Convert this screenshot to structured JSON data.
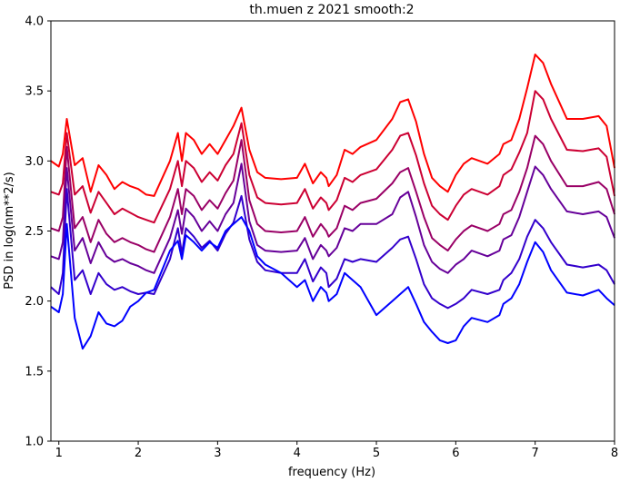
{
  "chart_data": {
    "type": "line",
    "title": "th.muen z 2021 smooth:2",
    "xlabel": "frequency (Hz)",
    "ylabel": "PSD in log(nm**2/s)",
    "xlim": [
      0.9,
      8.0
    ],
    "ylim": [
      1.0,
      4.0
    ],
    "xticks": [
      "1",
      "2",
      "3",
      "4",
      "5",
      "6",
      "7",
      "8"
    ],
    "yticks": [
      "1.0",
      "1.5",
      "2.0",
      "2.5",
      "3.0",
      "3.5",
      "4.0"
    ],
    "grid": false,
    "legend": "none",
    "x": [
      0.9,
      1.0,
      1.05,
      1.1,
      1.2,
      1.3,
      1.4,
      1.5,
      1.6,
      1.7,
      1.8,
      1.9,
      2.0,
      2.1,
      2.2,
      2.4,
      2.5,
      2.55,
      2.6,
      2.7,
      2.8,
      2.9,
      3.0,
      3.1,
      3.2,
      3.3,
      3.4,
      3.5,
      3.6,
      3.8,
      4.0,
      4.1,
      4.2,
      4.3,
      4.37,
      4.4,
      4.5,
      4.6,
      4.7,
      4.8,
      5.0,
      5.2,
      5.3,
      5.4,
      5.5,
      5.6,
      5.7,
      5.8,
      5.9,
      6.0,
      6.1,
      6.2,
      6.4,
      6.55,
      6.6,
      6.7,
      6.8,
      6.9,
      7.0,
      7.1,
      7.2,
      7.4,
      7.6,
      7.8,
      7.9,
      8.0
    ],
    "series": [
      {
        "color": "#ff0000",
        "values": [
          3.0,
          2.96,
          3.05,
          3.3,
          2.97,
          3.02,
          2.78,
          2.97,
          2.9,
          2.8,
          2.85,
          2.82,
          2.8,
          2.76,
          2.75,
          3.0,
          3.2,
          3.0,
          3.2,
          3.15,
          3.05,
          3.12,
          3.05,
          3.15,
          3.25,
          3.38,
          3.08,
          2.92,
          2.88,
          2.87,
          2.88,
          2.98,
          2.84,
          2.92,
          2.88,
          2.82,
          2.9,
          3.08,
          3.05,
          3.1,
          3.15,
          3.3,
          3.42,
          3.44,
          3.28,
          3.05,
          2.88,
          2.82,
          2.78,
          2.9,
          2.98,
          3.02,
          2.98,
          3.05,
          3.12,
          3.15,
          3.3,
          3.52,
          3.76,
          3.7,
          3.55,
          3.3,
          3.3,
          3.32,
          3.25,
          2.95
        ]
      },
      {
        "color": "#cc0033",
        "values": [
          2.78,
          2.76,
          2.84,
          3.2,
          2.76,
          2.82,
          2.63,
          2.78,
          2.7,
          2.62,
          2.66,
          2.63,
          2.6,
          2.58,
          2.56,
          2.8,
          3.0,
          2.82,
          3.0,
          2.95,
          2.85,
          2.92,
          2.86,
          2.97,
          3.05,
          3.27,
          2.9,
          2.74,
          2.7,
          2.69,
          2.7,
          2.8,
          2.66,
          2.74,
          2.7,
          2.65,
          2.72,
          2.88,
          2.85,
          2.9,
          2.94,
          3.08,
          3.18,
          3.2,
          3.04,
          2.84,
          2.68,
          2.62,
          2.58,
          2.68,
          2.76,
          2.8,
          2.76,
          2.82,
          2.9,
          2.94,
          3.06,
          3.2,
          3.5,
          3.44,
          3.3,
          3.08,
          3.07,
          3.09,
          3.03,
          2.75
        ]
      },
      {
        "color": "#990066",
        "values": [
          2.52,
          2.5,
          2.6,
          3.1,
          2.52,
          2.6,
          2.42,
          2.58,
          2.48,
          2.42,
          2.45,
          2.42,
          2.4,
          2.37,
          2.35,
          2.6,
          2.8,
          2.62,
          2.8,
          2.75,
          2.65,
          2.72,
          2.66,
          2.77,
          2.86,
          3.15,
          2.72,
          2.55,
          2.5,
          2.49,
          2.5,
          2.6,
          2.46,
          2.55,
          2.5,
          2.46,
          2.52,
          2.68,
          2.65,
          2.7,
          2.73,
          2.84,
          2.92,
          2.95,
          2.78,
          2.6,
          2.45,
          2.4,
          2.36,
          2.44,
          2.5,
          2.54,
          2.5,
          2.55,
          2.62,
          2.65,
          2.78,
          2.95,
          3.18,
          3.12,
          3.0,
          2.82,
          2.82,
          2.85,
          2.8,
          2.62
        ]
      },
      {
        "color": "#660099",
        "values": [
          2.32,
          2.3,
          2.42,
          2.95,
          2.36,
          2.45,
          2.27,
          2.42,
          2.32,
          2.28,
          2.3,
          2.27,
          2.25,
          2.22,
          2.2,
          2.45,
          2.65,
          2.48,
          2.66,
          2.6,
          2.5,
          2.57,
          2.5,
          2.62,
          2.7,
          2.98,
          2.57,
          2.4,
          2.36,
          2.35,
          2.36,
          2.45,
          2.3,
          2.4,
          2.36,
          2.32,
          2.38,
          2.52,
          2.5,
          2.55,
          2.55,
          2.62,
          2.74,
          2.78,
          2.6,
          2.4,
          2.28,
          2.23,
          2.2,
          2.26,
          2.3,
          2.36,
          2.32,
          2.36,
          2.44,
          2.47,
          2.6,
          2.78,
          2.96,
          2.9,
          2.8,
          2.64,
          2.62,
          2.64,
          2.6,
          2.45
        ]
      },
      {
        "color": "#3300cc",
        "values": [
          2.1,
          2.05,
          2.2,
          2.8,
          2.15,
          2.22,
          2.05,
          2.2,
          2.12,
          2.08,
          2.1,
          2.07,
          2.05,
          2.06,
          2.05,
          2.3,
          2.52,
          2.34,
          2.52,
          2.46,
          2.38,
          2.43,
          2.36,
          2.48,
          2.56,
          2.75,
          2.44,
          2.28,
          2.22,
          2.2,
          2.2,
          2.3,
          2.14,
          2.24,
          2.2,
          2.1,
          2.16,
          2.3,
          2.28,
          2.3,
          2.28,
          2.38,
          2.44,
          2.46,
          2.3,
          2.12,
          2.02,
          1.98,
          1.95,
          1.98,
          2.02,
          2.08,
          2.05,
          2.08,
          2.15,
          2.2,
          2.3,
          2.46,
          2.58,
          2.52,
          2.42,
          2.26,
          2.24,
          2.26,
          2.22,
          2.12
        ]
      },
      {
        "color": "#0000ff",
        "values": [
          1.96,
          1.92,
          2.05,
          2.55,
          1.88,
          1.66,
          1.75,
          1.92,
          1.84,
          1.82,
          1.86,
          1.96,
          2.0,
          2.06,
          2.08,
          2.36,
          2.43,
          2.3,
          2.47,
          2.42,
          2.36,
          2.42,
          2.38,
          2.5,
          2.55,
          2.6,
          2.5,
          2.32,
          2.26,
          2.2,
          2.1,
          2.15,
          2.0,
          2.1,
          2.06,
          2.0,
          2.05,
          2.2,
          2.15,
          2.1,
          1.9,
          2.0,
          2.05,
          2.1,
          1.98,
          1.85,
          1.78,
          1.72,
          1.7,
          1.72,
          1.82,
          1.88,
          1.85,
          1.9,
          1.98,
          2.02,
          2.12,
          2.28,
          2.42,
          2.35,
          2.22,
          2.06,
          2.04,
          2.08,
          2.02,
          1.97
        ]
      }
    ]
  }
}
